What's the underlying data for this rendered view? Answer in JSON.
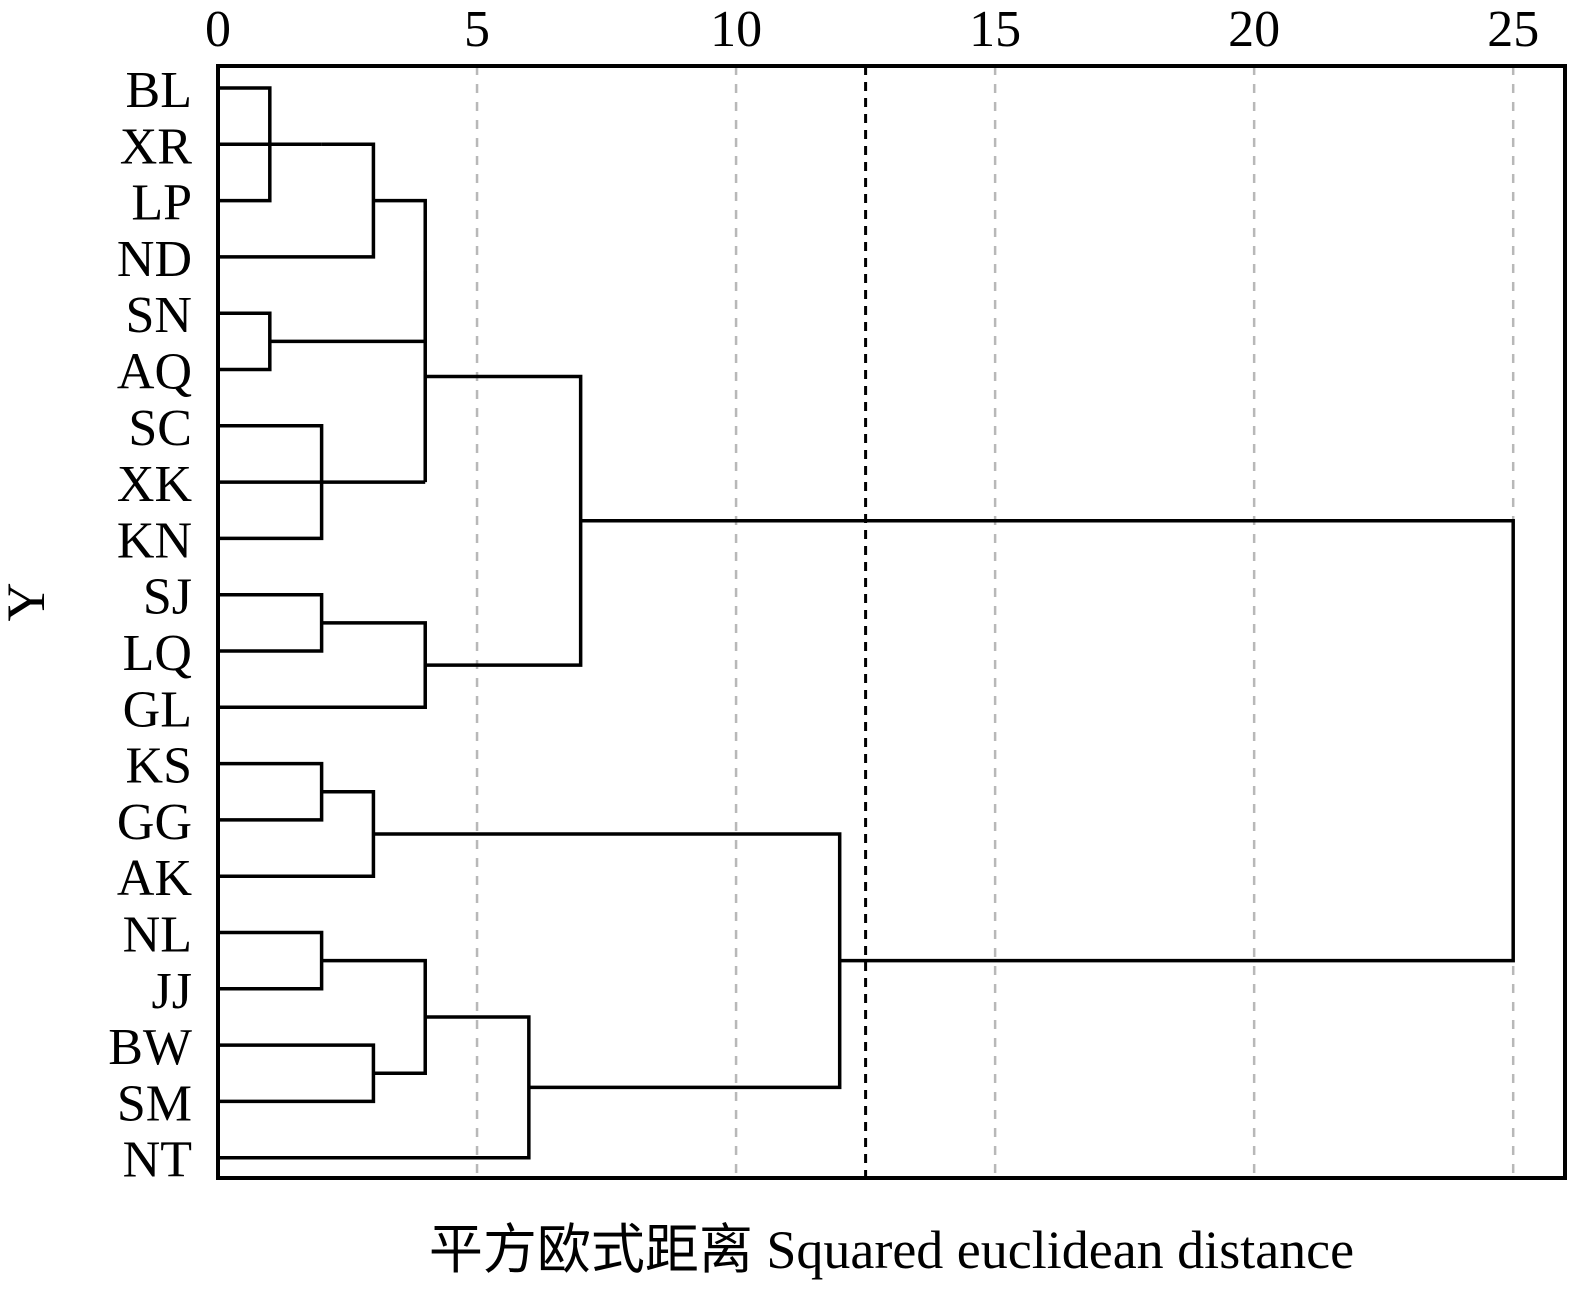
{
  "chart_data": {
    "type": "dendrogram",
    "xlabel": "平方欧式距离 Squared euclidean distance",
    "ylabel": "Y",
    "xlim": [
      0,
      26
    ],
    "x_ticks": [
      "0",
      "5",
      "10",
      "15",
      "20",
      "25"
    ],
    "x_tick_values": [
      0,
      5,
      10,
      15,
      20,
      25
    ],
    "grid": "vertical dashed at x ticks",
    "threshold_line": 12.5,
    "leaves": [
      "BL",
      "XR",
      "LP",
      "ND",
      "SN",
      "AQ",
      "SC",
      "XK",
      "KN",
      "SJ",
      "LQ",
      "GL",
      "KS",
      "GG",
      "AK",
      "NL",
      "JJ",
      "BW",
      "SM",
      "NT"
    ],
    "merges": [
      {
        "a": "L0",
        "b": "L2",
        "height": 1,
        "id": "M0"
      },
      {
        "a": "L1",
        "b": "M0",
        "height": 2,
        "id": "M1"
      },
      {
        "a": "M1",
        "b": "L3",
        "height": 3,
        "id": "M2"
      },
      {
        "a": "L4",
        "b": "L5",
        "height": 1,
        "id": "M3"
      },
      {
        "a": "M2",
        "b": "M3",
        "height": 4,
        "id": "M4"
      },
      {
        "a": "L6",
        "b": "L8",
        "height": 2,
        "id": "M5"
      },
      {
        "a": "M5",
        "b": "L7",
        "height": 4,
        "id": "M6"
      },
      {
        "a": "M4",
        "b": "M6",
        "height": 4,
        "id": "M7"
      },
      {
        "a": "L9",
        "b": "L10",
        "height": 2,
        "id": "M8"
      },
      {
        "a": "M8",
        "b": "L11",
        "height": 4,
        "id": "M9"
      },
      {
        "a": "M7",
        "b": "M9",
        "height": 7,
        "id": "M10"
      },
      {
        "a": "L12",
        "b": "L13",
        "height": 2,
        "id": "M11"
      },
      {
        "a": "M11",
        "b": "L14",
        "height": 3,
        "id": "M12"
      },
      {
        "a": "L15",
        "b": "L16",
        "height": 2,
        "id": "M13"
      },
      {
        "a": "L17",
        "b": "L18",
        "height": 3,
        "id": "M14"
      },
      {
        "a": "M13",
        "b": "M14",
        "height": 4,
        "id": "M15"
      },
      {
        "a": "M15",
        "b": "L19",
        "height": 6,
        "id": "M16"
      },
      {
        "a": "M12",
        "b": "M16",
        "height": 12,
        "id": "M17"
      },
      {
        "a": "M10",
        "b": "M17",
        "height": 25,
        "id": "M18"
      }
    ]
  }
}
